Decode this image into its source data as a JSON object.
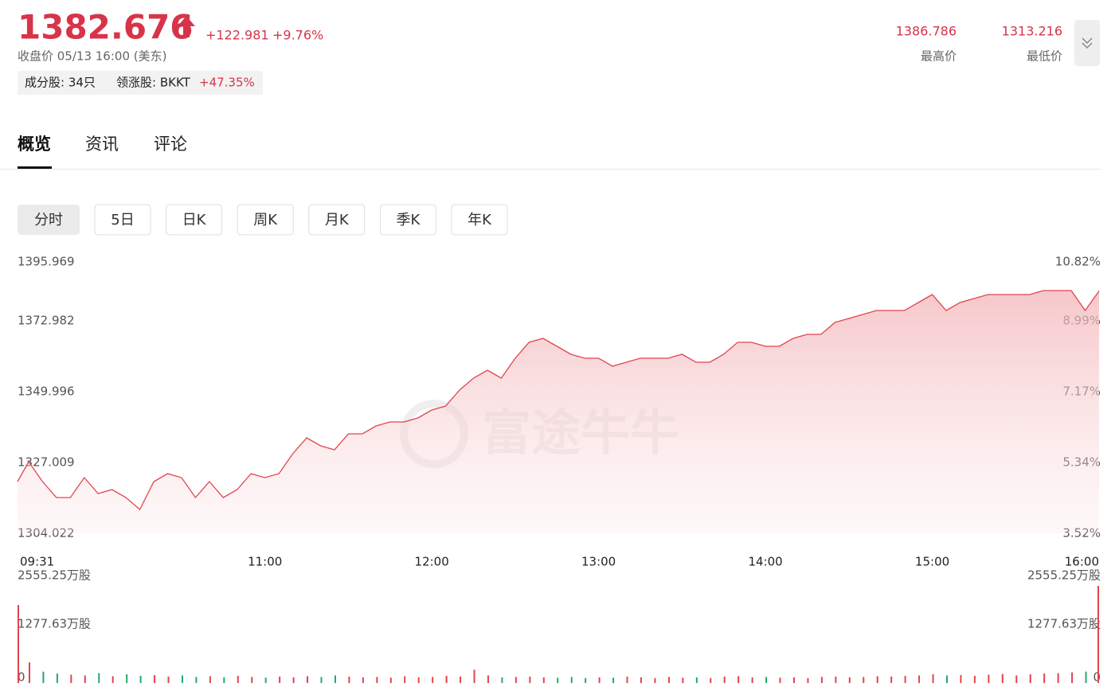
{
  "header": {
    "price": "1382.676",
    "change": "+122.981",
    "change_pct": "+9.76%",
    "close_info": "收盘价 05/13 16:00 (美东)",
    "constituents": "成分股: 34只",
    "leader": "领涨股: BKKT",
    "leader_pct": "+47.35%",
    "high": "1386.786",
    "high_label": "最高价",
    "low": "1313.216",
    "low_label": "最低价"
  },
  "tabs": [
    "概览",
    "资讯",
    "评论"
  ],
  "periods": [
    "分时",
    "5日",
    "日K",
    "周K",
    "月K",
    "季K",
    "年K"
  ],
  "watermark": "富途牛牛",
  "chart_data": {
    "type": "line",
    "color": "#e0454f",
    "x": [
      "09:31",
      "09:35",
      "09:40",
      "09:45",
      "09:50",
      "09:55",
      "10:00",
      "10:05",
      "10:10",
      "10:15",
      "10:20",
      "10:25",
      "10:30",
      "10:35",
      "10:40",
      "10:45",
      "10:50",
      "10:55",
      "11:00",
      "11:05",
      "11:10",
      "11:15",
      "11:20",
      "11:25",
      "11:30",
      "11:35",
      "11:40",
      "11:45",
      "11:50",
      "11:55",
      "12:00",
      "12:05",
      "12:10",
      "12:15",
      "12:20",
      "12:25",
      "12:30",
      "12:35",
      "12:40",
      "12:45",
      "12:50",
      "12:55",
      "13:00",
      "13:05",
      "13:10",
      "13:15",
      "13:20",
      "13:25",
      "13:30",
      "13:35",
      "13:40",
      "13:45",
      "13:50",
      "13:55",
      "14:00",
      "14:05",
      "14:10",
      "14:15",
      "14:20",
      "14:25",
      "14:30",
      "14:35",
      "14:40",
      "14:45",
      "14:50",
      "14:55",
      "15:00",
      "15:05",
      "15:10",
      "15:15",
      "15:20",
      "15:25",
      "15:30",
      "15:35",
      "15:40",
      "15:45",
      "15:50",
      "15:55",
      "16:00"
    ],
    "values": [
      1320.81,
      1327.27,
      1320.81,
      1315.64,
      1315.64,
      1322.1,
      1316.94,
      1318.23,
      1315.64,
      1311.77,
      1320.81,
      1323.39,
      1322.1,
      1315.64,
      1320.81,
      1315.64,
      1318.23,
      1323.39,
      1322.1,
      1323.39,
      1329.85,
      1335.01,
      1332.43,
      1331.14,
      1336.31,
      1336.31,
      1338.89,
      1340.18,
      1340.18,
      1341.47,
      1344.05,
      1345.35,
      1350.51,
      1354.39,
      1356.97,
      1354.39,
      1360.84,
      1366.01,
      1367.3,
      1364.72,
      1362.13,
      1360.84,
      1360.84,
      1358.26,
      1359.55,
      1360.84,
      1360.84,
      1360.84,
      1362.13,
      1359.55,
      1359.55,
      1362.13,
      1366.01,
      1366.01,
      1364.72,
      1364.72,
      1367.3,
      1368.59,
      1368.59,
      1372.46,
      1373.76,
      1375.05,
      1376.34,
      1376.34,
      1376.34,
      1378.92,
      1381.5,
      1376.34,
      1378.92,
      1380.21,
      1381.5,
      1381.5,
      1381.5,
      1381.5,
      1382.8,
      1382.8,
      1382.8,
      1376.34,
      1382.676
    ],
    "xlim": [
      "09:31",
      "16:00"
    ],
    "xticks": [
      "09:31",
      "11:00",
      "12:00",
      "13:00",
      "14:00",
      "15:00",
      "16:00"
    ],
    "ylim": [
      1304.022,
      1395.969
    ],
    "yticks": [
      1304.022,
      1327.009,
      1349.996,
      1372.982,
      1395.969
    ],
    "y2lim": [
      3.52,
      10.82
    ],
    "y2ticks": [
      {
        "value": 3.52,
        "label": "3.52%"
      },
      {
        "value": 5.34,
        "label": "5.34%"
      },
      {
        "value": 7.17,
        "label": "7.17%"
      },
      {
        "value": 8.99,
        "label": "8.99%"
      },
      {
        "value": 10.82,
        "label": "10.82%"
      }
    ],
    "grid": false,
    "volume": {
      "up_color": "#e0454f",
      "down_color": "#2aa66b",
      "values": [
        2052,
        545,
        300,
        250,
        220,
        200,
        260,
        180,
        230,
        190,
        210,
        170,
        200,
        160,
        180,
        150,
        190,
        160,
        140,
        170,
        150,
        180,
        160,
        200,
        170,
        150,
        160,
        140,
        180,
        150,
        160,
        190,
        170,
        350,
        200,
        150,
        160,
        170,
        150,
        140,
        160,
        130,
        150,
        140,
        170,
        150,
        130,
        160,
        140,
        150,
        130,
        170,
        180,
        150,
        160,
        140,
        150,
        130,
        160,
        170,
        150,
        160,
        180,
        170,
        190,
        200,
        230,
        200,
        210,
        190,
        220,
        240,
        200,
        230,
        250,
        260,
        280,
        300,
        2555.25
      ],
      "ylim": [
        0,
        2555.25
      ],
      "yticks": [
        0,
        {
          "value": 1277.63,
          "label": "1277.63万股"
        },
        {
          "value": 2555.25,
          "label": "2555.25万股"
        }
      ]
    }
  }
}
